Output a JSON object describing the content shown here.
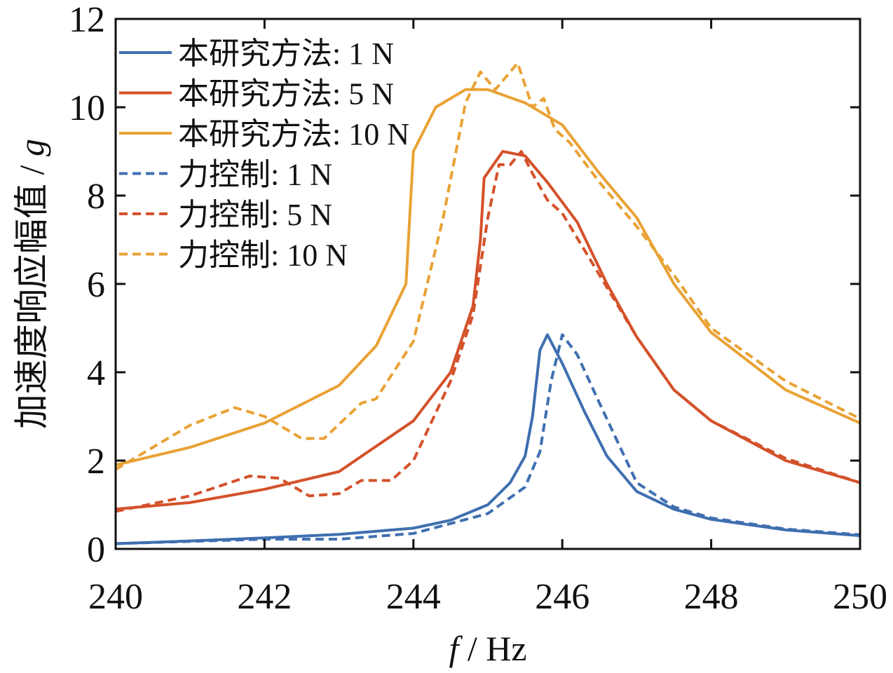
{
  "chart_data": {
    "type": "line",
    "title": "",
    "xlabel_italic": "f",
    "xlabel_rest": " / Hz",
    "ylabel_text": "加速度响应幅值 / ",
    "ylabel_italic": "g",
    "xlim": [
      240,
      250
    ],
    "ylim": [
      0,
      12
    ],
    "xticks": [
      240,
      242,
      244,
      246,
      248,
      250
    ],
    "yticks": [
      0,
      2,
      4,
      6,
      8,
      10,
      12
    ],
    "grid": false,
    "legend_position": "top-left",
    "series": [
      {
        "name": "本研究方法: 1 N",
        "color": "#3f6fb0",
        "dash": false,
        "points": [
          [
            240,
            0.12
          ],
          [
            241,
            0.18
          ],
          [
            242,
            0.25
          ],
          [
            243,
            0.33
          ],
          [
            244,
            0.47
          ],
          [
            244.5,
            0.65
          ],
          [
            245,
            1.0
          ],
          [
            245.3,
            1.5
          ],
          [
            245.5,
            2.1
          ],
          [
            245.6,
            3.0
          ],
          [
            245.7,
            4.5
          ],
          [
            245.8,
            4.85
          ],
          [
            246,
            4.2
          ],
          [
            246.3,
            3.1
          ],
          [
            246.6,
            2.1
          ],
          [
            247,
            1.3
          ],
          [
            247.5,
            0.9
          ],
          [
            248,
            0.67
          ],
          [
            249,
            0.43
          ],
          [
            250,
            0.3
          ]
        ]
      },
      {
        "name": "本研究方法: 5 N",
        "color": "#d4512a",
        "dash": false,
        "points": [
          [
            240,
            0.9
          ],
          [
            241,
            1.05
          ],
          [
            242,
            1.35
          ],
          [
            243,
            1.75
          ],
          [
            244,
            2.9
          ],
          [
            244.5,
            4.0
          ],
          [
            244.8,
            5.5
          ],
          [
            244.9,
            7.0
          ],
          [
            244.95,
            8.4
          ],
          [
            245.2,
            9.0
          ],
          [
            245.5,
            8.9
          ],
          [
            245.8,
            8.3
          ],
          [
            246.2,
            7.4
          ],
          [
            246.6,
            6.0
          ],
          [
            247,
            4.8
          ],
          [
            247.5,
            3.6
          ],
          [
            248,
            2.9
          ],
          [
            249,
            2.0
          ],
          [
            250,
            1.5
          ]
        ]
      },
      {
        "name": "本研究方法: 10 N",
        "color": "#e9a235",
        "dash": false,
        "points": [
          [
            240,
            1.9
          ],
          [
            241,
            2.3
          ],
          [
            242,
            2.85
          ],
          [
            243,
            3.7
          ],
          [
            243.5,
            4.6
          ],
          [
            243.9,
            6.0
          ],
          [
            244,
            9.0
          ],
          [
            244.3,
            10.0
          ],
          [
            244.7,
            10.4
          ],
          [
            245,
            10.4
          ],
          [
            245.5,
            10.1
          ],
          [
            246,
            9.6
          ],
          [
            246.5,
            8.5
          ],
          [
            247,
            7.5
          ],
          [
            247.5,
            6.0
          ],
          [
            248,
            4.9
          ],
          [
            249,
            3.6
          ],
          [
            250,
            2.85
          ]
        ]
      },
      {
        "name": "力控制: 1 N",
        "color": "#3f6fb0",
        "dash": true,
        "points": [
          [
            240,
            0.12
          ],
          [
            242,
            0.22
          ],
          [
            243,
            0.22
          ],
          [
            244,
            0.35
          ],
          [
            245,
            0.8
          ],
          [
            245.5,
            1.4
          ],
          [
            245.7,
            2.2
          ],
          [
            245.85,
            3.8
          ],
          [
            246,
            4.85
          ],
          [
            246.2,
            4.4
          ],
          [
            246.5,
            3.3
          ],
          [
            247,
            1.5
          ],
          [
            247.5,
            0.95
          ],
          [
            248,
            0.7
          ],
          [
            249,
            0.45
          ],
          [
            250,
            0.32
          ]
        ]
      },
      {
        "name": "力控制: 5 N",
        "color": "#d4512a",
        "dash": true,
        "points": [
          [
            240,
            0.85
          ],
          [
            241,
            1.2
          ],
          [
            241.8,
            1.65
          ],
          [
            242.2,
            1.6
          ],
          [
            242.6,
            1.2
          ],
          [
            243,
            1.25
          ],
          [
            243.3,
            1.55
          ],
          [
            243.7,
            1.55
          ],
          [
            244,
            2.0
          ],
          [
            244.5,
            3.8
          ],
          [
            244.8,
            5.3
          ],
          [
            245,
            7.5
          ],
          [
            245.15,
            8.7
          ],
          [
            245.3,
            8.7
          ],
          [
            245.45,
            9.0
          ],
          [
            245.6,
            8.5
          ],
          [
            245.8,
            7.9
          ],
          [
            246,
            7.6
          ],
          [
            246.5,
            6.2
          ],
          [
            247,
            4.8
          ],
          [
            247.5,
            3.6
          ],
          [
            248,
            2.9
          ],
          [
            249,
            2.05
          ],
          [
            250,
            1.5
          ]
        ]
      },
      {
        "name": "力控制: 10 N",
        "color": "#e9a235",
        "dash": true,
        "points": [
          [
            240,
            1.8
          ],
          [
            240.5,
            2.3
          ],
          [
            241,
            2.8
          ],
          [
            241.6,
            3.2
          ],
          [
            242,
            3.0
          ],
          [
            242.5,
            2.5
          ],
          [
            242.8,
            2.5
          ],
          [
            243.3,
            3.3
          ],
          [
            243.5,
            3.4
          ],
          [
            244,
            4.7
          ],
          [
            244.4,
            7.5
          ],
          [
            244.7,
            10.1
          ],
          [
            244.9,
            10.8
          ],
          [
            245.1,
            10.4
          ],
          [
            245.3,
            10.8
          ],
          [
            245.4,
            11.0
          ],
          [
            245.6,
            10.0
          ],
          [
            245.75,
            10.2
          ],
          [
            245.9,
            9.5
          ],
          [
            246.1,
            9.2
          ],
          [
            246.5,
            8.3
          ],
          [
            247,
            7.3
          ],
          [
            247.5,
            6.2
          ],
          [
            248,
            5.0
          ],
          [
            249,
            3.8
          ],
          [
            250,
            2.95
          ]
        ]
      }
    ]
  }
}
